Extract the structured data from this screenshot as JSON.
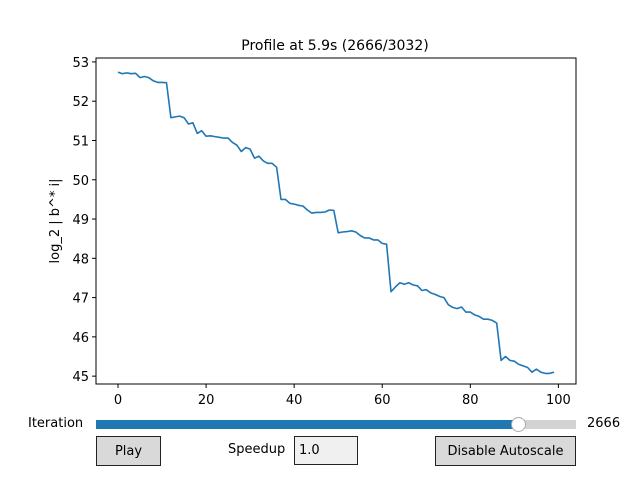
{
  "chart_data": {
    "type": "line",
    "title": "Profile at 5.9s (2666/3032)",
    "xlabel": "",
    "ylabel": "log_2 | b^* i|",
    "xlim": [
      -5,
      104
    ],
    "ylim": [
      44.8,
      53.1
    ],
    "xticks": [
      0,
      20,
      40,
      60,
      80,
      100
    ],
    "yticks": [
      45,
      46,
      47,
      48,
      49,
      50,
      51,
      52,
      53
    ],
    "grid": false,
    "color": "#1f77b4",
    "series": [
      {
        "x": [
          0,
          1,
          2,
          3,
          4,
          5,
          6,
          7,
          8,
          9,
          10,
          11,
          12,
          13,
          14,
          15,
          16,
          17,
          18,
          19,
          20,
          21,
          22,
          23,
          24,
          25,
          26,
          27,
          28,
          29,
          30,
          31,
          32,
          33,
          34,
          35,
          36,
          37,
          38,
          39,
          40,
          41,
          42,
          43,
          44,
          45,
          46,
          47,
          48,
          49,
          50,
          51,
          52,
          53,
          54,
          55,
          56,
          57,
          58,
          59,
          60,
          61,
          62,
          63,
          64,
          65,
          66,
          67,
          68,
          69,
          70,
          71,
          72,
          73,
          74,
          75,
          76,
          77,
          78,
          79,
          80,
          81,
          82,
          83,
          84,
          85,
          86,
          87,
          88,
          89,
          90,
          91,
          92,
          93,
          94,
          95,
          96,
          97,
          98,
          99
        ],
        "values": [
          52.74,
          52.7,
          52.72,
          52.7,
          52.71,
          52.6,
          52.63,
          52.6,
          52.52,
          52.48,
          52.48,
          52.47,
          51.58,
          51.6,
          51.62,
          51.58,
          51.42,
          51.45,
          51.18,
          51.25,
          51.11,
          51.12,
          51.1,
          51.08,
          51.06,
          51.06,
          50.95,
          50.88,
          50.72,
          50.82,
          50.78,
          50.55,
          50.6,
          50.48,
          50.42,
          50.42,
          50.32,
          49.5,
          49.5,
          49.4,
          49.38,
          49.35,
          49.33,
          49.23,
          49.15,
          49.17,
          49.17,
          49.18,
          49.23,
          49.22,
          48.65,
          48.67,
          48.68,
          48.7,
          48.67,
          48.58,
          48.52,
          48.52,
          48.47,
          48.47,
          48.38,
          48.36,
          47.15,
          47.27,
          47.38,
          47.34,
          47.38,
          47.32,
          47.3,
          47.18,
          47.2,
          47.12,
          47.08,
          47.03,
          47.0,
          46.82,
          46.75,
          46.72,
          46.76,
          46.63,
          46.63,
          46.56,
          46.52,
          46.45,
          46.45,
          46.42,
          46.35,
          45.4,
          45.5,
          45.4,
          45.38,
          45.3,
          45.26,
          45.22,
          45.1,
          45.18,
          45.1,
          45.07,
          45.07,
          45.1
        ]
      }
    ]
  },
  "controls": {
    "slider_label": "Iteration",
    "slider_value": "2666",
    "slider_fraction": 0.8793,
    "play_label": "Play",
    "speedup_label": "Speedup",
    "speedup_value": "1.0",
    "autoscale_label": "Disable Autoscale"
  }
}
